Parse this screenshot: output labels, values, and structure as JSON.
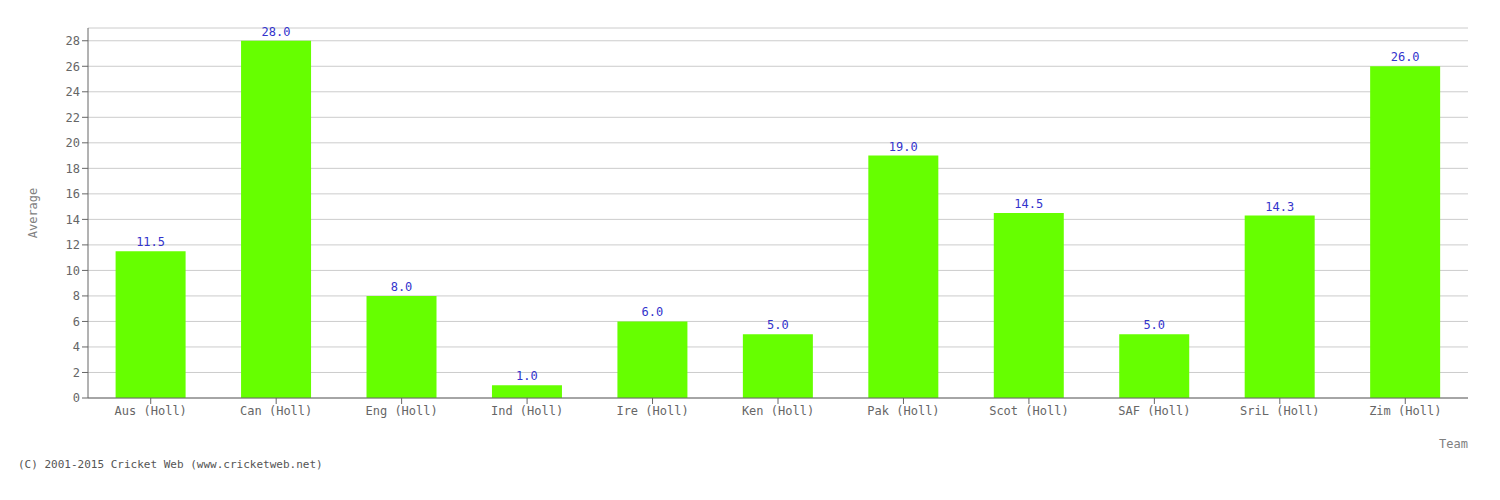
{
  "chart_data": {
    "type": "bar",
    "categories": [
      "Aus (Holl)",
      "Can (Holl)",
      "Eng (Holl)",
      "Ind (Holl)",
      "Ire (Holl)",
      "Ken (Holl)",
      "Pak (Holl)",
      "Scot (Holl)",
      "SAF (Holl)",
      "SriL (Holl)",
      "Zim (Holl)"
    ],
    "values": [
      11.5,
      28.0,
      8.0,
      1.0,
      6.0,
      5.0,
      19.0,
      14.5,
      5.0,
      14.3,
      26.0
    ],
    "value_labels": [
      "11.5",
      "28.0",
      "8.0",
      "1.0",
      "6.0",
      "5.0",
      "19.0",
      "14.5",
      "5.0",
      "14.3",
      "26.0"
    ],
    "color": "#66ff00",
    "xlabel": "Team",
    "ylabel": "Average",
    "ylim": [
      0,
      29
    ],
    "yticks": [
      0,
      2,
      4,
      6,
      8,
      10,
      12,
      14,
      16,
      18,
      20,
      22,
      24,
      26,
      28
    ],
    "grid": true,
    "data_labels": true,
    "annotations": [
      "(C) 2001-2015 Cricket Web (www.cricketweb.net)"
    ]
  }
}
